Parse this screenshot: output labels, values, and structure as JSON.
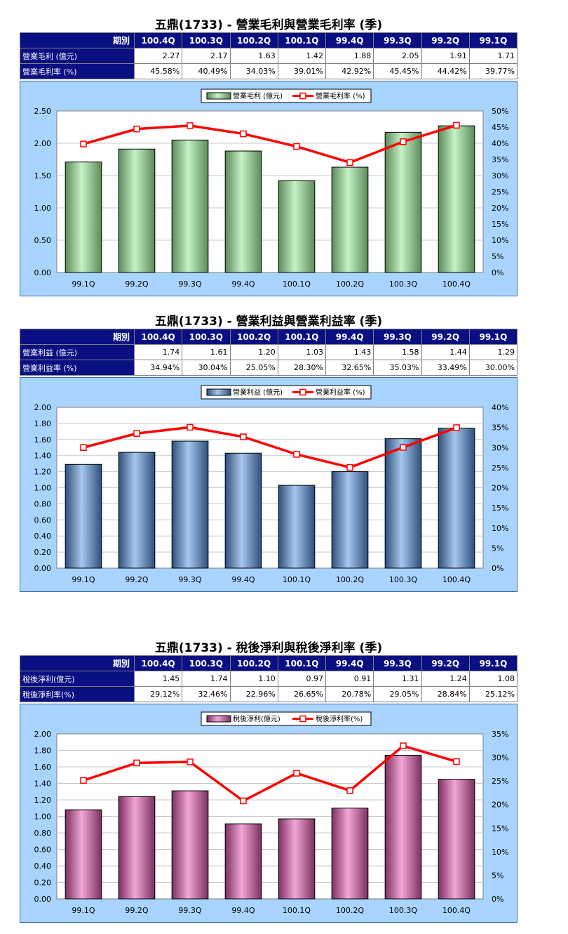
{
  "chart_data": [
    {
      "type": "bar",
      "title": "五鼎(1733) - 營業毛利與營業毛利率 (季)",
      "table": {
        "header_label": "期別",
        "periods": [
          "100.4Q",
          "100.3Q",
          "100.2Q",
          "100.1Q",
          "99.4Q",
          "99.3Q",
          "99.2Q",
          "99.1Q"
        ],
        "rows": [
          {
            "label": "營業毛利 (億元)",
            "values": [
              "2.27",
              "2.17",
              "1.63",
              "1.42",
              "1.88",
              "2.05",
              "1.91",
              "1.71"
            ]
          },
          {
            "label": "營業毛利率 (%)",
            "values": [
              "45.58%",
              "40.49%",
              "34.03%",
              "39.01%",
              "42.92%",
              "45.45%",
              "44.42%",
              "39.77%"
            ]
          }
        ]
      },
      "legend": {
        "bar": "營業毛利 (億元)",
        "line": "營業毛利率 (%)",
        "position": "top-center"
      },
      "categories": [
        "99.1Q",
        "99.2Q",
        "99.3Q",
        "99.4Q",
        "100.1Q",
        "100.2Q",
        "100.3Q",
        "100.4Q"
      ],
      "series": [
        {
          "name": "營業毛利 (億元)",
          "kind": "bar",
          "axis": "left",
          "values": [
            1.71,
            1.91,
            2.05,
            1.88,
            1.42,
            1.63,
            2.17,
            2.27
          ]
        },
        {
          "name": "營業毛利率 (%)",
          "kind": "line",
          "axis": "right",
          "values": [
            39.77,
            44.42,
            45.45,
            42.92,
            39.01,
            34.03,
            40.49,
            45.58
          ]
        }
      ],
      "y_left": {
        "min": 0,
        "max": 2.5,
        "step": 0.5,
        "decimals": 2
      },
      "y_right": {
        "min": 0,
        "max": 50,
        "step": 5
      },
      "bar_color": "#c6f2c6",
      "bar_dark": "#5a8a5a",
      "line_color": "#ff0000",
      "plot_bg": "#ffffff",
      "grid": true
    },
    {
      "type": "bar",
      "title": "五鼎(1733) - 營業利益與營業利益率 (季)",
      "table": {
        "header_label": "期別",
        "periods": [
          "100.4Q",
          "100.3Q",
          "100.2Q",
          "100.1Q",
          "99.4Q",
          "99.3Q",
          "99.2Q",
          "99.1Q"
        ],
        "rows": [
          {
            "label": "營業利益 (億元)",
            "values": [
              "1.74",
              "1.61",
              "1.20",
              "1.03",
              "1.43",
              "1.58",
              "1.44",
              "1.29"
            ]
          },
          {
            "label": "營業利益率 (%)",
            "values": [
              "34.94%",
              "30.04%",
              "25.05%",
              "28.30%",
              "32.65%",
              "35.03%",
              "33.49%",
              "30.00%"
            ]
          }
        ]
      },
      "legend": {
        "bar": "營業利益 (億元)",
        "line": "營業利益率 (%)",
        "position": "top-center"
      },
      "categories": [
        "99.1Q",
        "99.2Q",
        "99.3Q",
        "99.4Q",
        "100.1Q",
        "100.2Q",
        "100.3Q",
        "100.4Q"
      ],
      "series": [
        {
          "name": "營業利益 (億元)",
          "kind": "bar",
          "axis": "left",
          "values": [
            1.29,
            1.44,
            1.58,
            1.43,
            1.03,
            1.2,
            1.61,
            1.74
          ]
        },
        {
          "name": "營業利益率 (%)",
          "kind": "line",
          "axis": "right",
          "values": [
            30.0,
            33.49,
            35.03,
            32.65,
            28.3,
            25.05,
            30.04,
            34.94
          ]
        }
      ],
      "y_left": {
        "min": 0,
        "max": 2.0,
        "step": 0.2,
        "decimals": 2
      },
      "y_right": {
        "min": 0,
        "max": 40,
        "step": 5
      },
      "bar_color": "#a6c8ee",
      "bar_dark": "#2e4f7a",
      "line_color": "#ff0000",
      "plot_bg": "#ffffff",
      "grid": true
    },
    {
      "type": "bar",
      "title": "五鼎(1733) - 稅後淨利與稅後淨利率 (季)",
      "table": {
        "header_label": "期別",
        "periods": [
          "100.4Q",
          "100.3Q",
          "100.2Q",
          "100.1Q",
          "99.4Q",
          "99.3Q",
          "99.2Q",
          "99.1Q"
        ],
        "rows": [
          {
            "label": "稅後淨利(億元)",
            "values": [
              "1.45",
              "1.74",
              "1.10",
              "0.97",
              "0.91",
              "1.31",
              "1.24",
              "1.08"
            ]
          },
          {
            "label": "稅後淨利率(%)",
            "values": [
              "29.12%",
              "32.46%",
              "22.96%",
              "26.65%",
              "20.78%",
              "29.05%",
              "28.84%",
              "25.12%"
            ]
          }
        ]
      },
      "legend": {
        "bar": "稅後淨利(億元)",
        "line": "稅後淨利率(%)",
        "position": "top-center"
      },
      "categories": [
        "99.1Q",
        "99.2Q",
        "99.3Q",
        "99.4Q",
        "100.1Q",
        "100.2Q",
        "100.3Q",
        "100.4Q"
      ],
      "series": [
        {
          "name": "稅後淨利(億元)",
          "kind": "bar",
          "axis": "left",
          "values": [
            1.08,
            1.24,
            1.31,
            0.91,
            0.97,
            1.1,
            1.74,
            1.45
          ]
        },
        {
          "name": "稅後淨利率(%)",
          "kind": "line",
          "axis": "right",
          "values": [
            25.12,
            28.84,
            29.05,
            20.78,
            26.65,
            22.96,
            32.46,
            29.12
          ]
        }
      ],
      "y_left": {
        "min": 0,
        "max": 2.0,
        "step": 0.2,
        "decimals": 2
      },
      "y_right": {
        "min": 0,
        "max": 35,
        "step": 5
      },
      "bar_color": "#f4a6d6",
      "bar_dark": "#7a3060",
      "line_color": "#ff0000",
      "plot_bg": "#ffffff",
      "grid": true
    }
  ]
}
